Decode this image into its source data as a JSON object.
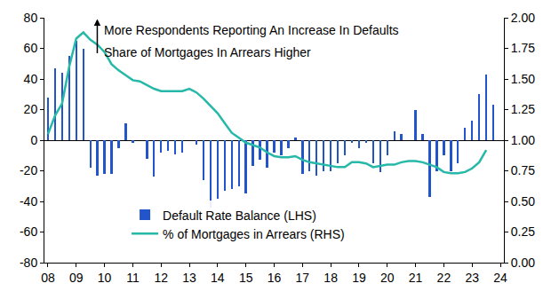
{
  "chart_data": {
    "type": "bar",
    "annotations": [
      "More Respondents Reporting An Increase In Defaults",
      "Share of Mortgages In Arrears Higher"
    ],
    "categories": [
      "08",
      null,
      null,
      null,
      "09",
      null,
      null,
      null,
      "10",
      null,
      null,
      null,
      "11",
      null,
      null,
      null,
      "12",
      null,
      null,
      null,
      "13",
      null,
      null,
      null,
      "14",
      null,
      null,
      null,
      "15",
      null,
      null,
      null,
      "16",
      null,
      null,
      null,
      "17",
      null,
      null,
      null,
      "18",
      null,
      null,
      null,
      "19",
      null,
      null,
      null,
      "20",
      null,
      null,
      null,
      "21",
      null,
      null,
      null,
      "22",
      null,
      null,
      null,
      "23",
      null,
      null,
      null,
      "24"
    ],
    "series": [
      {
        "name": "Default Rate Balance (LHS)",
        "type": "bar",
        "color": "#2255cc",
        "values": [
          28,
          47,
          44,
          55,
          65,
          60,
          -18,
          -23,
          -22,
          -22,
          -5,
          11,
          -2,
          0,
          -12,
          -24,
          -8,
          -7,
          -9,
          -8,
          0,
          -3,
          -26,
          -44,
          -38,
          -33,
          -32,
          -30,
          -35,
          -17,
          -13,
          -18,
          -8,
          -10,
          -5,
          2,
          -22,
          -20,
          -23,
          -20,
          -20,
          -15,
          -10,
          -2,
          -5,
          -2,
          -15,
          -21,
          -10,
          6,
          4,
          0,
          20,
          4,
          -37,
          -20,
          -10,
          -20,
          -15,
          8,
          13,
          30,
          43,
          23,
          null
        ]
      },
      {
        "name": "% of Mortgages in Arrears (RHS)",
        "type": "line",
        "axis": "y2",
        "color": "#26b8a8",
        "line_style": "solid",
        "values": [
          1.05,
          1.2,
          1.3,
          1.6,
          1.83,
          1.88,
          1.82,
          1.78,
          1.72,
          1.62,
          1.57,
          1.53,
          1.49,
          1.48,
          1.45,
          1.42,
          1.4,
          1.4,
          1.4,
          1.4,
          1.42,
          1.39,
          1.34,
          1.28,
          1.22,
          1.14,
          1.06,
          1.02,
          0.98,
          0.96,
          0.94,
          0.9,
          0.87,
          0.86,
          0.86,
          0.87,
          0.84,
          0.82,
          0.81,
          0.8,
          0.79,
          0.78,
          0.78,
          0.82,
          0.82,
          0.81,
          0.78,
          0.79,
          0.8,
          0.8,
          0.82,
          0.83,
          0.83,
          0.82,
          0.8,
          0.78,
          0.74,
          0.73,
          0.73,
          0.74,
          0.77,
          0.82,
          0.92,
          null,
          null
        ]
      }
    ],
    "ylim": [
      -80,
      80
    ],
    "yticks": [
      -80,
      -60,
      -40,
      -20,
      0,
      20,
      40,
      60,
      80
    ],
    "y2lim": [
      0,
      2
    ],
    "y2ticks": [
      {
        "value": 0,
        "label": "0.00"
      },
      {
        "value": 0.25,
        "label": "0.25"
      },
      {
        "value": 0.5,
        "label": "0.50"
      },
      {
        "value": 0.75,
        "label": "0.75"
      },
      {
        "value": 1,
        "label": "1.00"
      },
      {
        "value": 1.25,
        "label": "1.25"
      },
      {
        "value": 1.5,
        "label": "1.50"
      },
      {
        "value": 1.75,
        "label": "1.75"
      },
      {
        "value": 2,
        "label": "2.00"
      }
    ],
    "grid": false,
    "legend": "bottom left"
  }
}
